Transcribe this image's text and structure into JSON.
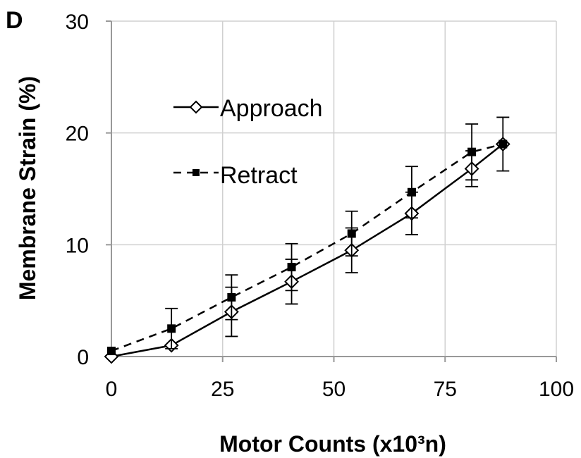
{
  "chart_data": {
    "type": "line",
    "panel_label": "D",
    "xlabel": "Motor Counts (x10³n)",
    "ylabel": "Membrane Strain (%)",
    "xlim": [
      0,
      100
    ],
    "ylim": [
      0,
      30
    ],
    "x_ticks": [
      "0",
      "25",
      "50",
      "75",
      "100"
    ],
    "y_ticks": [
      "0",
      "10",
      "20",
      "30"
    ],
    "grid": "vertical and horizontal gridlines",
    "legend_position": "upper-left inside plot",
    "series": [
      {
        "name": "Approach",
        "marker": "open-diamond",
        "line_style": "solid",
        "color": "#000000",
        "x": [
          0,
          13.5,
          27,
          40.5,
          54,
          67.5,
          81,
          88
        ],
        "y": [
          0,
          1,
          4,
          6.7,
          9.5,
          12.8,
          16.8,
          19
        ],
        "error": [
          0,
          0,
          2.2,
          2,
          2,
          1.9,
          1.6,
          2.4
        ]
      },
      {
        "name": "Retract",
        "marker": "filled-square",
        "line_style": "dashed",
        "color": "#000000",
        "x": [
          0,
          13.5,
          27,
          40.5,
          54,
          67.5,
          81,
          88
        ],
        "y": [
          0.5,
          2.5,
          5.3,
          8,
          11,
          14.7,
          18.3,
          19
        ],
        "error": [
          0,
          1.8,
          2,
          2.1,
          2,
          2.3,
          2.5,
          0
        ]
      }
    ]
  }
}
